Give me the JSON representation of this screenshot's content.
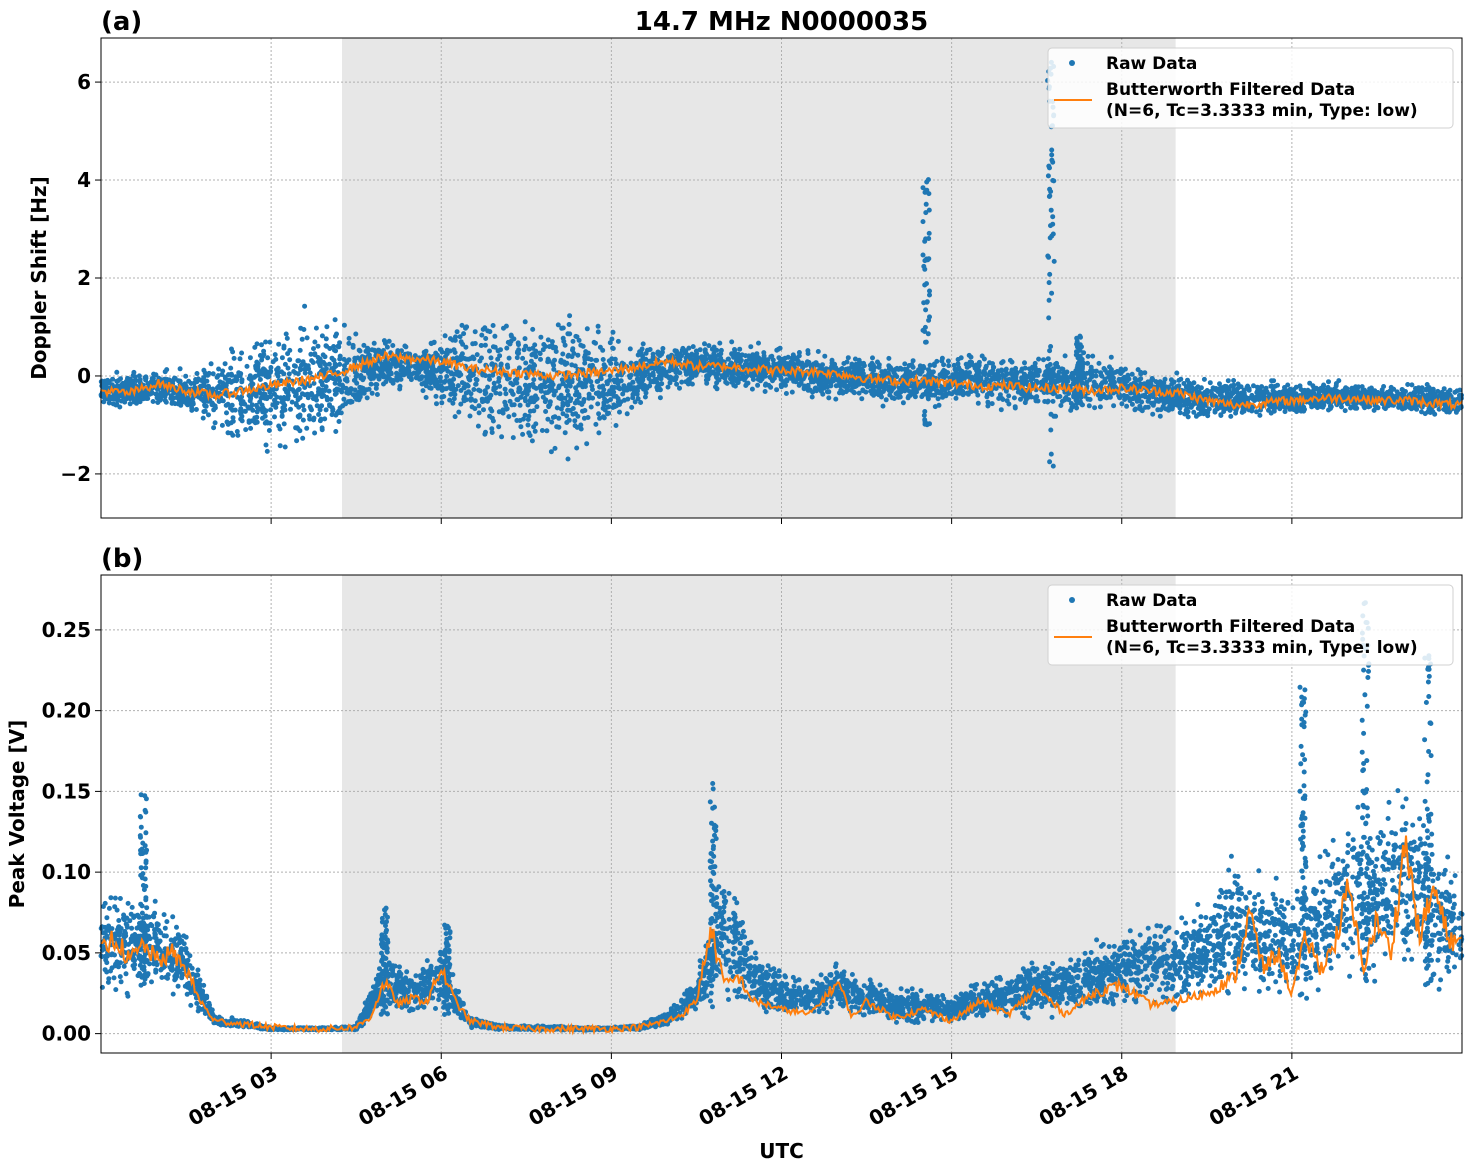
{
  "chart_data": [
    {
      "type": "scatter",
      "panel_label": "(a)",
      "title": "14.7 MHz N0000035",
      "ylabel": "Doppler Shift [Hz]",
      "xlabel": "",
      "x_range_hours": [
        0,
        24
      ],
      "ylim": [
        -2.9,
        6.9
      ],
      "yticks": [
        -2,
        0,
        2,
        4,
        6
      ],
      "ytick_labels": [
        "−2",
        "0",
        "2",
        "4",
        "6"
      ],
      "shaded_region_hours": [
        4.25,
        18.95
      ],
      "grid": true,
      "legend": {
        "placement": "top-right",
        "entries": [
          {
            "label": "Raw Data",
            "color": "#1f77b4",
            "marker": "dot"
          },
          {
            "label": "Butterworth Filtered Data",
            "label2": "(N=6, Tc=3.3333 min, Type: low)",
            "color": "#ff7f0e",
            "marker": "line"
          }
        ]
      },
      "series": [
        {
          "name": "Raw Data",
          "color": "#1f77b4",
          "envelope": {
            "x": [
              0,
              0.5,
              1,
              1.5,
              2,
              2.5,
              3,
              3.5,
              4,
              4.5,
              5,
              5.5,
              6,
              6.5,
              7,
              7.5,
              8,
              8.5,
              9,
              9.5,
              10,
              10.5,
              11,
              11.5,
              12,
              12.5,
              13,
              13.5,
              14,
              14.5,
              15,
              15.5,
              16,
              16.5,
              17,
              17.5,
              18,
              18.5,
              19,
              19.5,
              20,
              20.5,
              21,
              21.5,
              22,
              22.5,
              23,
              23.5,
              24
            ],
            "upper": [
              0.1,
              0.15,
              0.2,
              0.2,
              0.5,
              0.9,
              1.3,
              1.5,
              1.4,
              1.2,
              0.9,
              0.7,
              1.0,
              1.4,
              1.6,
              1.6,
              1.5,
              1.4,
              1.2,
              0.9,
              0.7,
              0.8,
              0.8,
              0.7,
              0.65,
              0.6,
              0.5,
              0.5,
              0.45,
              0.45,
              0.5,
              0.6,
              0.6,
              0.55,
              0.6,
              0.55,
              0.4,
              0.3,
              0.2,
              0.05,
              0.0,
              0.0,
              -0.05,
              -0.05,
              -0.05,
              -0.1,
              -0.1,
              -0.1,
              -0.15
            ],
            "lower": [
              -0.7,
              -0.7,
              -0.75,
              -0.9,
              -1.3,
              -1.6,
              -1.9,
              -1.9,
              -1.7,
              -1.1,
              -0.5,
              -0.3,
              -0.9,
              -1.5,
              -1.7,
              -1.8,
              -1.9,
              -1.7,
              -1.4,
              -0.8,
              -0.4,
              -0.3,
              -0.4,
              -0.4,
              -0.45,
              -0.5,
              -0.55,
              -0.6,
              -0.7,
              -0.7,
              -0.7,
              -0.75,
              -0.8,
              -0.8,
              -0.9,
              -0.8,
              -0.9,
              -0.9,
              -1.0,
              -1.0,
              -0.95,
              -0.85,
              -0.85,
              -0.8,
              -0.8,
              -0.8,
              -0.85,
              -0.9,
              -0.9
            ]
          },
          "spikes": [
            {
              "x": 14.55,
              "ymax": 4.05,
              "ymin": -1.0
            },
            {
              "x": 16.75,
              "ymax": 6.6,
              "ymin": -2.1
            },
            {
              "x": 17.25,
              "ymax": 0.9,
              "ymin": -0.6
            }
          ]
        },
        {
          "name": "Butterworth Filtered Data",
          "color": "#ff7f0e",
          "x": [
            0,
            0.5,
            1,
            1.5,
            2,
            2.5,
            3,
            3.5,
            4,
            4.5,
            5,
            5.5,
            6,
            6.5,
            7,
            7.5,
            8,
            8.5,
            9,
            9.5,
            10,
            10.5,
            11,
            11.5,
            12,
            12.5,
            13,
            13.5,
            14,
            14.5,
            15,
            15.5,
            16,
            16.5,
            17,
            17.5,
            18,
            18.5,
            19,
            19.5,
            20,
            20.5,
            21,
            21.5,
            22,
            22.5,
            23,
            23.5,
            24
          ],
          "y": [
            -0.3,
            -0.35,
            -0.15,
            -0.3,
            -0.4,
            -0.3,
            -0.2,
            -0.1,
            0.0,
            0.2,
            0.4,
            0.35,
            0.3,
            0.15,
            0.1,
            0.05,
            0.0,
            0.05,
            0.1,
            0.2,
            0.3,
            0.2,
            0.2,
            0.15,
            0.1,
            0.1,
            0.05,
            -0.05,
            -0.1,
            -0.1,
            -0.15,
            -0.2,
            -0.2,
            -0.25,
            -0.25,
            -0.3,
            -0.25,
            -0.3,
            -0.35,
            -0.5,
            -0.6,
            -0.55,
            -0.5,
            -0.45,
            -0.45,
            -0.5,
            -0.5,
            -0.55,
            -0.6
          ]
        }
      ]
    },
    {
      "type": "scatter",
      "panel_label": "(b)",
      "title": "",
      "ylabel": "Peak Voltage [V]",
      "xlabel": "UTC",
      "x_range_hours": [
        0,
        24
      ],
      "ylim": [
        -0.012,
        0.284
      ],
      "yticks": [
        0.0,
        0.05,
        0.1,
        0.15,
        0.2,
        0.25
      ],
      "ytick_labels": [
        "0.00",
        "0.05",
        "0.10",
        "0.15",
        "0.20",
        "0.25"
      ],
      "xticks_hours": [
        3,
        6,
        9,
        12,
        15,
        18,
        21
      ],
      "xtick_labels": [
        "08-15 03",
        "08-15 06",
        "08-15 09",
        "08-15 12",
        "08-15 15",
        "08-15 18",
        "08-15 21"
      ],
      "shaded_region_hours": [
        4.25,
        18.95
      ],
      "grid": true,
      "legend": {
        "placement": "top-right",
        "entries": [
          {
            "label": "Raw Data",
            "color": "#1f77b4",
            "marker": "dot"
          },
          {
            "label": "Butterworth Filtered Data",
            "label2": "(N=6, Tc=3.3333 min, Type: low)",
            "color": "#ff7f0e",
            "marker": "line"
          }
        ]
      },
      "series": [
        {
          "name": "Raw Data",
          "color": "#1f77b4",
          "envelope": {
            "x": [
              0,
              0.5,
              1,
              1.5,
              2,
              2.5,
              3,
              3.5,
              4,
              4.5,
              5,
              5.5,
              6,
              6.5,
              7,
              7.5,
              8,
              8.5,
              9,
              9.5,
              10,
              10.5,
              11,
              11.5,
              12,
              12.5,
              13,
              13.5,
              14,
              14.5,
              15,
              15.5,
              16,
              16.5,
              17,
              17.5,
              18,
              18.5,
              19,
              19.5,
              20,
              20.5,
              21,
              21.5,
              22,
              22.5,
              23,
              23.5,
              24
            ],
            "upper": [
              0.1,
              0.09,
              0.085,
              0.07,
              0.012,
              0.01,
              0.004,
              0.004,
              0.004,
              0.005,
              0.055,
              0.04,
              0.06,
              0.012,
              0.006,
              0.005,
              0.005,
              0.004,
              0.004,
              0.006,
              0.015,
              0.04,
              0.12,
              0.06,
              0.04,
              0.035,
              0.05,
              0.035,
              0.03,
              0.03,
              0.025,
              0.035,
              0.04,
              0.05,
              0.05,
              0.06,
              0.07,
              0.08,
              0.075,
              0.09,
              0.12,
              0.1,
              0.1,
              0.12,
              0.15,
              0.15,
              0.17,
              0.14,
              0.1
            ],
            "lower": [
              0.015,
              0.02,
              0.02,
              0.015,
              0.004,
              0.003,
              0.002,
              0.002,
              0.002,
              0.002,
              0.01,
              0.01,
              0.01,
              0.003,
              0.002,
              0.002,
              0.002,
              0.002,
              0.002,
              0.002,
              0.004,
              0.01,
              0.015,
              0.01,
              0.01,
              0.008,
              0.01,
              0.008,
              0.005,
              0.005,
              0.004,
              0.006,
              0.008,
              0.008,
              0.008,
              0.008,
              0.01,
              0.01,
              0.01,
              0.01,
              0.015,
              0.015,
              0.02,
              0.02,
              0.02,
              0.025,
              0.025,
              0.02,
              0.02
            ]
          },
          "spikes": [
            {
              "x": 0.75,
              "ymax": 0.15,
              "ymin": 0.03
            },
            {
              "x": 5.0,
              "ymax": 0.078,
              "ymin": 0.01
            },
            {
              "x": 6.1,
              "ymax": 0.068,
              "ymin": 0.01
            },
            {
              "x": 10.8,
              "ymax": 0.158,
              "ymin": 0.02
            },
            {
              "x": 21.2,
              "ymax": 0.215,
              "ymin": 0.02
            },
            {
              "x": 22.3,
              "ymax": 0.27,
              "ymin": 0.03
            },
            {
              "x": 23.4,
              "ymax": 0.235,
              "ymin": 0.03
            }
          ]
        },
        {
          "name": "Butterworth Filtered Data",
          "color": "#ff7f0e",
          "x": [
            0,
            0.25,
            0.5,
            0.75,
            1,
            1.25,
            1.5,
            1.75,
            2,
            2.5,
            3,
            3.5,
            4,
            4.5,
            4.75,
            5,
            5.25,
            5.5,
            5.75,
            6,
            6.25,
            6.5,
            7,
            7.5,
            8,
            8.5,
            9,
            9.5,
            10,
            10.25,
            10.5,
            10.75,
            11,
            11.25,
            11.5,
            11.75,
            12,
            12.5,
            13,
            13.25,
            13.5,
            14,
            14.5,
            15,
            15.5,
            16,
            16.5,
            17,
            17.5,
            18,
            18.5,
            19,
            19.5,
            20,
            20.25,
            20.5,
            20.75,
            21,
            21.25,
            21.5,
            21.75,
            22,
            22.25,
            22.5,
            22.75,
            23,
            23.25,
            23.5,
            23.75,
            24
          ],
          "y": [
            0.05,
            0.06,
            0.045,
            0.055,
            0.045,
            0.05,
            0.04,
            0.02,
            0.008,
            0.006,
            0.004,
            0.003,
            0.003,
            0.004,
            0.01,
            0.032,
            0.018,
            0.022,
            0.02,
            0.04,
            0.02,
            0.008,
            0.004,
            0.003,
            0.003,
            0.003,
            0.003,
            0.004,
            0.008,
            0.012,
            0.02,
            0.065,
            0.03,
            0.035,
            0.02,
            0.018,
            0.015,
            0.012,
            0.032,
            0.01,
            0.02,
            0.01,
            0.015,
            0.008,
            0.02,
            0.012,
            0.028,
            0.012,
            0.025,
            0.03,
            0.018,
            0.02,
            0.025,
            0.035,
            0.075,
            0.04,
            0.05,
            0.025,
            0.06,
            0.04,
            0.055,
            0.09,
            0.04,
            0.07,
            0.05,
            0.12,
            0.06,
            0.09,
            0.06,
            0.055
          ]
        }
      ]
    }
  ]
}
